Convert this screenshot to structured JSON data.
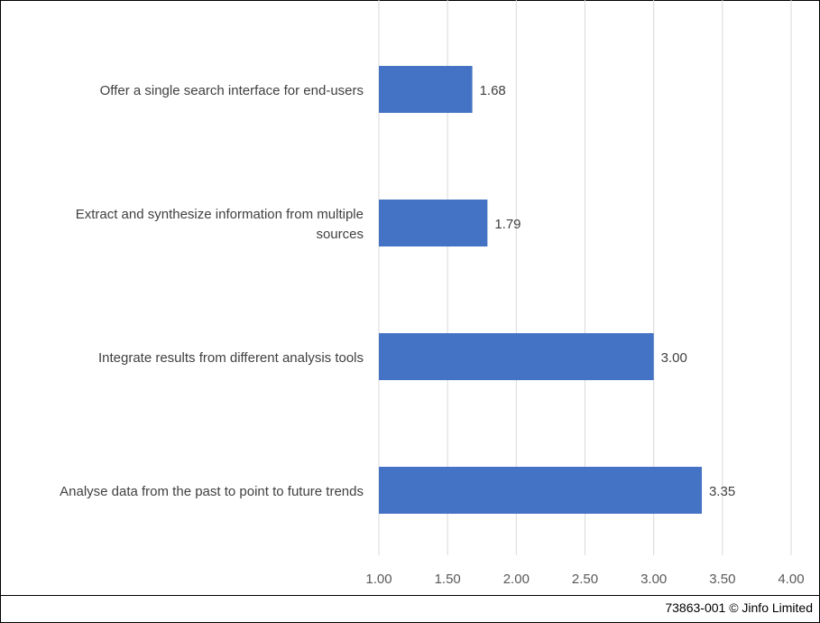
{
  "chart_data": {
    "type": "bar",
    "orientation": "horizontal",
    "categories": [
      "Offer a single search interface for end-users",
      "Extract and synthesize information from multiple sources",
      "Integrate results from different analysis tools",
      "Analyse data from the past to point to future trends"
    ],
    "category_lines": [
      [
        "Offer a single search interface for end-users"
      ],
      [
        "Extract and synthesize information from multiple",
        "sources"
      ],
      [
        "Integrate results from different analysis tools"
      ],
      [
        "Analyse data from the past to point to future trends"
      ]
    ],
    "values": [
      1.68,
      1.79,
      3.0,
      3.35
    ],
    "data_labels": [
      "1.68",
      "1.79",
      "3.00",
      "3.35"
    ],
    "xlim": [
      1.0,
      4.0
    ],
    "xticks": [
      1.0,
      1.5,
      2.0,
      2.5,
      3.0,
      3.5,
      4.0
    ],
    "xtick_labels": [
      "1.00",
      "1.50",
      "2.00",
      "2.50",
      "3.00",
      "3.50",
      "4.00"
    ],
    "grid": true,
    "bar_color": "#4472C4",
    "title": "",
    "xlabel": "",
    "ylabel": ""
  },
  "footer": {
    "text": "73863-001 © Jinfo Limited"
  }
}
